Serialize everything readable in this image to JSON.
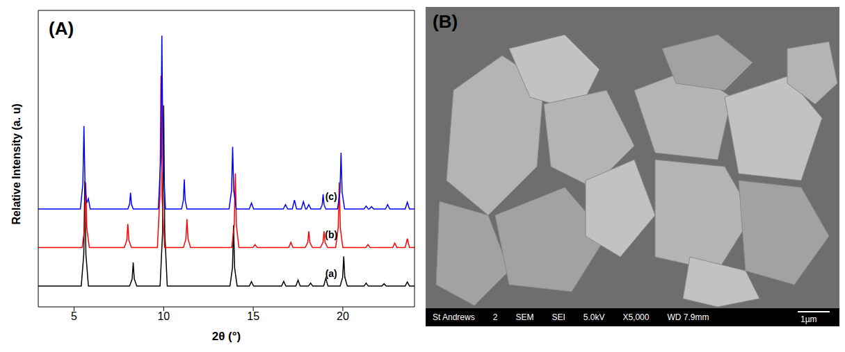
{
  "chart_data": {
    "type": "line",
    "title": "(A)",
    "x_label": "2θ (°)",
    "y_label": "Relative Intensity (a. u)",
    "xlim": [
      3,
      24
    ],
    "xticks": [
      5,
      10,
      15,
      20
    ],
    "ylim": [
      0,
      100
    ],
    "tick_labels": "x",
    "series": [
      {
        "name": "(a)",
        "color": "#000000",
        "x": [
          3,
          5.4,
          5.54,
          5.6,
          5.66,
          5.8,
          8.1,
          8.24,
          8.3,
          8.36,
          8.5,
          9.8,
          9.94,
          10.0,
          10.06,
          10.2,
          13.7,
          13.84,
          13.9,
          13.96,
          14.1,
          14.78,
          14.9,
          15.02,
          16.58,
          16.7,
          16.82,
          17.38,
          17.5,
          17.62,
          18.08,
          18.2,
          18.32,
          18.93,
          19.05,
          19.17,
          19.85,
          19.99,
          20.05,
          20.11,
          20.25,
          21.18,
          21.3,
          21.42,
          22.18,
          22.3,
          22.42,
          23.48,
          23.6,
          23.72,
          24
        ],
        "values": [
          7,
          7,
          17.7,
          42.5,
          17.7,
          7,
          7,
          9.4,
          15,
          9.4,
          7,
          7,
          25.3,
          68,
          25.3,
          7,
          7,
          13.2,
          27.5,
          13.2,
          7,
          7,
          8.5,
          7,
          7,
          8.6,
          7,
          7,
          9,
          7,
          7,
          8,
          7,
          7,
          9.7,
          7,
          7,
          10,
          17,
          10,
          7,
          7,
          8,
          7,
          7,
          7.8,
          7,
          7,
          8.4,
          7,
          7
        ]
      },
      {
        "name": "(b)",
        "color": "#ff0000",
        "x": [
          3,
          5.45,
          5.59,
          5.65,
          5.71,
          5.85,
          7.8,
          7.94,
          8.0,
          8.06,
          8.2,
          9.65,
          9.79,
          9.85,
          9.91,
          10.05,
          11.1,
          11.24,
          11.3,
          11.36,
          11.5,
          13.8,
          13.94,
          14.0,
          14.06,
          14.2,
          14.98,
          15.1,
          15.22,
          16.98,
          17.1,
          17.22,
          17.9,
          18.04,
          18.1,
          18.16,
          18.3,
          18.75,
          18.89,
          18.95,
          19.01,
          19.15,
          19.6,
          19.74,
          19.8,
          19.86,
          20.0,
          21.28,
          21.4,
          21.52,
          22.78,
          22.9,
          23.02,
          23.48,
          23.6,
          23.72,
          24
        ],
        "values": [
          20,
          20,
          26.6,
          42,
          26.6,
          20,
          20,
          22.4,
          28,
          22.4,
          20,
          20,
          37.4,
          78,
          37.4,
          20,
          20,
          22.9,
          29.6,
          22.9,
          20,
          20,
          27.5,
          45,
          27.5,
          20,
          20,
          21,
          20,
          20,
          21.8,
          20,
          20,
          21.7,
          25.5,
          21.7,
          20,
          20,
          21.7,
          25.5,
          21.7,
          20,
          20,
          26.6,
          42,
          26.6,
          20,
          20,
          21,
          20,
          20,
          21.5,
          20,
          20,
          23,
          20,
          20
        ]
      },
      {
        "name": "(c)",
        "color": "#0000ff",
        "x": [
          3,
          5.35,
          5.49,
          5.55,
          5.61,
          5.7,
          5.8,
          5.9,
          8.0,
          8.1,
          8.15,
          8.2,
          8.3,
          9.7,
          9.84,
          9.9,
          9.96,
          10.1,
          11.0,
          11.1,
          11.15,
          11.2,
          11.3,
          13.65,
          13.79,
          13.85,
          13.91,
          14.05,
          14.78,
          14.9,
          15.02,
          16.68,
          16.8,
          16.92,
          17.18,
          17.3,
          17.42,
          17.68,
          17.8,
          17.92,
          17.98,
          18.1,
          18.22,
          18.75,
          18.85,
          18.9,
          18.95,
          19.05,
          19.7,
          19.84,
          19.9,
          19.96,
          20.1,
          21.18,
          21.3,
          21.42,
          21.48,
          21.6,
          21.72,
          22.38,
          22.5,
          22.62,
          23.48,
          23.6,
          23.72,
          24
        ],
        "values": [
          33,
          33,
          41.4,
          61,
          41.4,
          35,
          36.5,
          33,
          33,
          34.7,
          38.5,
          34.7,
          33,
          33,
          50.5,
          91.5,
          50.5,
          33,
          33,
          36,
          43,
          36,
          33,
          33,
          39.3,
          54,
          39.3,
          33,
          33,
          35,
          33,
          33,
          34.5,
          33,
          33,
          36,
          33,
          33,
          35.5,
          33,
          33,
          34.5,
          33,
          33,
          34.5,
          38,
          34.5,
          33,
          33,
          38.7,
          52,
          38.7,
          33,
          33,
          34,
          33,
          33,
          33.8,
          33,
          33,
          34.5,
          33,
          33,
          35.3,
          33,
          33
        ]
      }
    ]
  },
  "image": {
    "label": "(B)",
    "info_bar": [
      "St Andrews",
      "2",
      "SEM",
      "SEI",
      "5.0kV",
      "X5,000",
      "WD 7.9mm"
    ],
    "scale_bar": "1µm"
  }
}
